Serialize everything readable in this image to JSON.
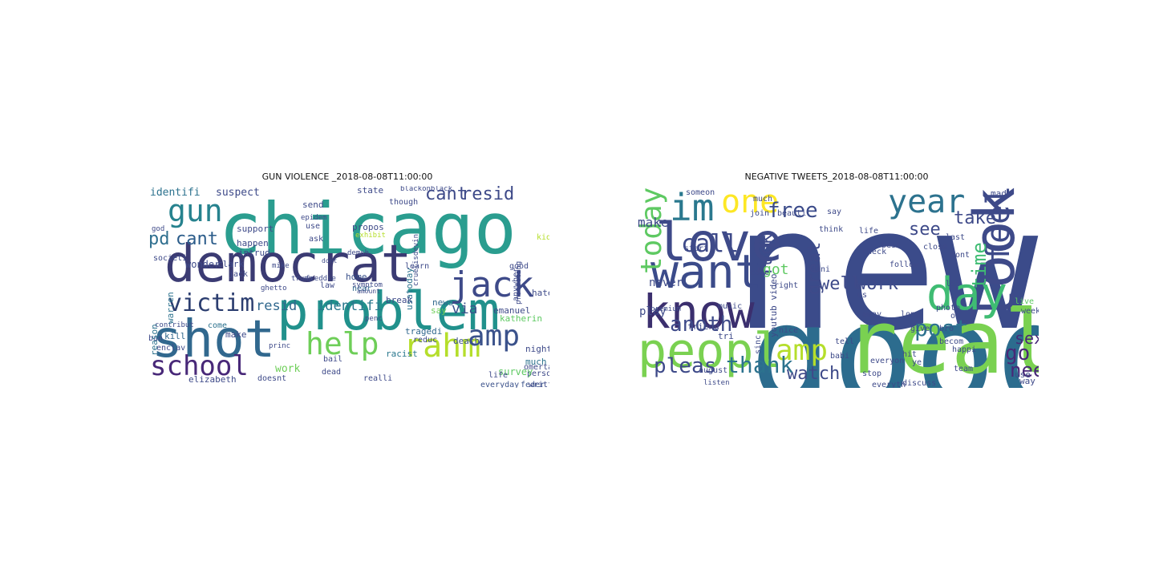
{
  "figure": {
    "panels": [
      {
        "id": "gun-violence",
        "title": "GUN VIOLENCE _2018-08-08T11:00:00",
        "words": [
          {
            "text": "chicago",
            "color": "#2a9d8f"
          },
          {
            "text": "democrat",
            "color": "#3b3b73"
          },
          {
            "text": "problem",
            "color": "#21918c"
          },
          {
            "text": "shot",
            "color": "#31688e"
          },
          {
            "text": "jack",
            "color": "#3e4a89"
          },
          {
            "text": "school",
            "color": "#482878"
          },
          {
            "text": "gun",
            "color": "#26828e"
          },
          {
            "text": "rahm",
            "color": "#b5de2b"
          },
          {
            "text": "help",
            "color": "#6ece58"
          },
          {
            "text": "amp",
            "color": "#3b528b"
          },
          {
            "text": "victim",
            "color": "#2c3e70"
          },
          {
            "text": "pd",
            "color": "#2f6f8f"
          },
          {
            "text": "cant",
            "color": "#2b5c8a"
          },
          {
            "text": "cant",
            "color": "#3e4a89"
          },
          {
            "text": "resid",
            "color": "#3e4a89"
          },
          {
            "text": "identifi",
            "color": "#2c728e"
          },
          {
            "text": "suspect",
            "color": "#3e4a89"
          },
          {
            "text": "resid",
            "color": "#31688e"
          },
          {
            "text": "identifi",
            "color": "#2a788e"
          },
          {
            "text": "via",
            "color": "#3b528b"
          },
          {
            "text": "emanuel",
            "color": "#3e4a89"
          },
          {
            "text": "tragedi",
            "color": "#31688e"
          },
          {
            "text": "racist",
            "color": "#2a788e"
          },
          {
            "text": "usatoday",
            "color": "#2c728e"
          },
          {
            "text": "hate",
            "color": "#3e4a89"
          },
          {
            "text": "near",
            "color": "#31688e"
          },
          {
            "text": "home",
            "color": "#3b528b"
          },
          {
            "text": "amount",
            "color": "#3e4a89"
          },
          {
            "text": "break",
            "color": "#3e4a89"
          },
          {
            "text": "news",
            "color": "#31688e"
          },
          {
            "text": "say",
            "color": "#6ece58"
          },
          {
            "text": "death",
            "color": "#3b528b"
          },
          {
            "text": "reduc",
            "color": "#3e4a89"
          },
          {
            "text": "night",
            "color": "#3e4a89"
          },
          {
            "text": "much",
            "color": "#2c728e"
          },
          {
            "text": "person",
            "color": "#3e4a89"
          },
          {
            "text": "survey",
            "color": "#5ec962"
          },
          {
            "text": "life",
            "color": "#3e4a89"
          },
          {
            "text": "feder",
            "color": "#3b528b"
          },
          {
            "text": "written",
            "color": "#3e4a89"
          },
          {
            "text": "everyday",
            "color": "#3b528b"
          },
          {
            "text": "katherin",
            "color": "#5ec962"
          },
          {
            "text": "omerta",
            "color": "#3e4a89"
          },
          {
            "text": "work",
            "color": "#6ece58"
          },
          {
            "text": "doesnt",
            "color": "#3e4a89"
          },
          {
            "text": "dead",
            "color": "#3e4a89"
          },
          {
            "text": "elizabeth",
            "color": "#3e4a89"
          },
          {
            "text": "realli",
            "color": "#3e4a89"
          },
          {
            "text": "bail",
            "color": "#3e4a89"
          },
          {
            "text": "kill",
            "color": "#31688e"
          },
          {
            "text": "make",
            "color": "#3e4a89"
          },
          {
            "text": "come",
            "color": "#2c728e"
          },
          {
            "text": "ban",
            "color": "#3e4a89"
          },
          {
            "text": "enclav",
            "color": "#3e4a89"
          },
          {
            "text": "contribut",
            "color": "#3e4a89"
          },
          {
            "text": "reason",
            "color": "#2c728e"
          },
          {
            "text": "warren",
            "color": "#2c728e"
          },
          {
            "text": "wonder",
            "color": "#3e4a89"
          },
          {
            "text": "societi",
            "color": "#3e4a89"
          },
          {
            "text": "clark",
            "color": "#3e4a89"
          },
          {
            "text": "intrud",
            "color": "#3e4a89"
          },
          {
            "text": "happen",
            "color": "#3e4a89"
          },
          {
            "text": "support",
            "color": "#3e4a89"
          },
          {
            "text": "use",
            "color": "#3e4a89"
          },
          {
            "text": "ask",
            "color": "#3e4a89"
          },
          {
            "text": "epidem",
            "color": "#3e4a89"
          },
          {
            "text": "send",
            "color": "#3e4a89"
          },
          {
            "text": "state",
            "color": "#3e4a89"
          },
          {
            "text": "blackonblack",
            "color": "#3e4a89"
          },
          {
            "text": "though",
            "color": "#3e4a89"
          },
          {
            "text": "propos",
            "color": "#3e4a89"
          },
          {
            "text": "exhibit",
            "color": "#b5de2b"
          },
          {
            "text": "law",
            "color": "#3e4a89"
          },
          {
            "text": "ghetto",
            "color": "#3e4a89"
          },
          {
            "text": "trump",
            "color": "#3e4a89"
          },
          {
            "text": "freddie",
            "color": "#3e4a89"
          },
          {
            "text": "symptom",
            "color": "#3e4a89"
          },
          {
            "text": "mike",
            "color": "#3e4a89"
          },
          {
            "text": "dont",
            "color": "#3e4a89"
          },
          {
            "text": "learn",
            "color": "#3e4a89"
          },
          {
            "text": "good",
            "color": "#3e4a89"
          },
          {
            "text": "kid",
            "color": "#b5de2b"
          },
          {
            "text": "anywher",
            "color": "#3e4a89"
          },
          {
            "text": "protecting",
            "color": "#3e4a89"
          },
          {
            "text": "cruelisdevin",
            "color": "#3e4a89"
          },
          {
            "text": "demsh",
            "color": "#3e4a89"
          },
          {
            "text": "jack",
            "color": "#3e4a89"
          },
          {
            "text": "princ",
            "color": "#3e4a89"
          },
          {
            "text": "penc",
            "color": "#3e4a89"
          },
          {
            "text": "god",
            "color": "#3e4a89"
          }
        ]
      },
      {
        "id": "negative-tweets",
        "title": "NEGATIVE TWEETS_2018-08-08T11:00:00",
        "words": [
          {
            "text": "new",
            "color": "#3b4b8a"
          },
          {
            "text": "good",
            "color": "#2c6c8e"
          },
          {
            "text": "realli",
            "color": "#7ad151"
          },
          {
            "text": "look",
            "color": "#3e4a89"
          },
          {
            "text": "know",
            "color": "#3b2f6e"
          },
          {
            "text": "peopl",
            "color": "#7ad151"
          },
          {
            "text": "love",
            "color": "#3e4a89"
          },
          {
            "text": "want",
            "color": "#3b4b8a"
          },
          {
            "text": "im",
            "color": "#2a788e"
          },
          {
            "text": "one",
            "color": "#fde725"
          },
          {
            "text": "day",
            "color": "#3fbc73"
          },
          {
            "text": "year",
            "color": "#2c728e"
          },
          {
            "text": "free",
            "color": "#3b4b8a"
          },
          {
            "text": "call",
            "color": "#3e4a89"
          },
          {
            "text": "today",
            "color": "#5ec962"
          },
          {
            "text": "feel",
            "color": "#3e4a89"
          },
          {
            "text": "amp",
            "color": "#b5de2b"
          },
          {
            "text": "thank",
            "color": "#2c728e"
          },
          {
            "text": "pleas",
            "color": "#3e4a89"
          },
          {
            "text": "watch",
            "color": "#3e4a89"
          },
          {
            "text": "anoth",
            "color": "#3e4a89"
          },
          {
            "text": "post",
            "color": "#2c728e"
          },
          {
            "text": "work",
            "color": "#3e4a89"
          },
          {
            "text": "well",
            "color": "#3e4a89"
          },
          {
            "text": "sex",
            "color": "#482878"
          },
          {
            "text": "go",
            "color": "#482878"
          },
          {
            "text": "need",
            "color": "#482878"
          },
          {
            "text": "see",
            "color": "#3e4a89"
          },
          {
            "text": "take",
            "color": "#3e4a89"
          },
          {
            "text": "time",
            "color": "#3fbc73"
          },
          {
            "text": "fuck",
            "color": "#3e4a89"
          },
          {
            "text": "great",
            "color": "#3e4a89"
          },
          {
            "text": "got",
            "color": "#5ec962"
          },
          {
            "text": "make",
            "color": "#3e4a89"
          },
          {
            "text": "never",
            "color": "#3e4a89"
          },
          {
            "text": "play",
            "color": "#3e4a89"
          },
          {
            "text": "august",
            "color": "#3e4a89"
          },
          {
            "text": "friend",
            "color": "#3e4a89"
          },
          {
            "text": "tri",
            "color": "#3e4a89"
          },
          {
            "text": "right",
            "color": "#3e4a89"
          },
          {
            "text": "mani",
            "color": "#3e4a89"
          },
          {
            "text": "music",
            "color": "#3e4a89"
          },
          {
            "text": "let",
            "color": "#3e4a89"
          },
          {
            "text": "photo",
            "color": "#3e4a89"
          },
          {
            "text": "oh",
            "color": "#3e4a89"
          },
          {
            "text": "use",
            "color": "#3e4a89"
          },
          {
            "text": "way",
            "color": "#3e4a89"
          },
          {
            "text": "live",
            "color": "#5ec962"
          },
          {
            "text": "follow",
            "color": "#3e4a89"
          },
          {
            "text": "come",
            "color": "#3e4a89"
          },
          {
            "text": "start",
            "color": "#3e4a89"
          },
          {
            "text": "much",
            "color": "#3e4a89"
          },
          {
            "text": "join",
            "color": "#3e4a89"
          },
          {
            "text": "beauti",
            "color": "#3e4a89"
          },
          {
            "text": "say",
            "color": "#3e4a89"
          },
          {
            "text": "made",
            "color": "#3e4a89"
          },
          {
            "text": "best",
            "color": "#3e4a89"
          },
          {
            "text": "close",
            "color": "#3e4a89"
          },
          {
            "text": "last",
            "color": "#3e4a89"
          },
          {
            "text": "think",
            "color": "#3e4a89"
          },
          {
            "text": "check",
            "color": "#3e4a89"
          },
          {
            "text": "dont",
            "color": "#3e4a89"
          },
          {
            "text": "someon",
            "color": "#3e4a89"
          },
          {
            "text": "life",
            "color": "#3e4a89"
          },
          {
            "text": "us",
            "color": "#3e4a89"
          },
          {
            "text": "away",
            "color": "#3e4a89"
          },
          {
            "text": "long",
            "color": "#3e4a89"
          },
          {
            "text": "give",
            "color": "#3e4a89"
          },
          {
            "text": "hit",
            "color": "#3e4a89"
          },
          {
            "text": "ye",
            "color": "#3e4a89"
          },
          {
            "text": "team",
            "color": "#3e4a89"
          },
          {
            "text": "tell",
            "color": "#3e4a89"
          },
          {
            "text": "nice",
            "color": "#3e4a89"
          },
          {
            "text": "babi",
            "color": "#3e4a89"
          },
          {
            "text": "everyon",
            "color": "#3e4a89"
          },
          {
            "text": "stop",
            "color": "#3e4a89"
          },
          {
            "text": "discuss",
            "color": "#3e4a89"
          },
          {
            "text": "everyth",
            "color": "#3e4a89"
          },
          {
            "text": "youtub video",
            "color": "#3e4a89"
          },
          {
            "text": "bro",
            "color": "#3e4a89"
          },
          {
            "text": "becom",
            "color": "#3e4a89"
          },
          {
            "text": "happi",
            "color": "#3e4a89"
          },
          {
            "text": "listen",
            "color": "#3e4a89"
          },
          {
            "text": "premium",
            "color": "#3e4a89"
          },
          {
            "text": "sinc",
            "color": "#3e4a89"
          },
          {
            "text": "week",
            "color": "#3e4a89"
          }
        ]
      }
    ]
  }
}
